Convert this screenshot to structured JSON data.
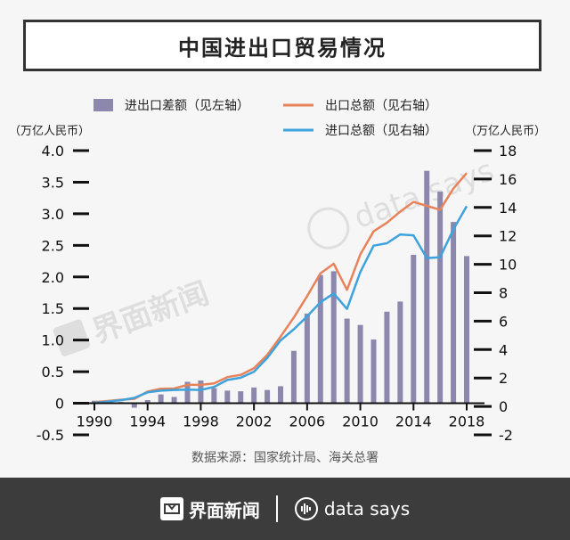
{
  "title": "中国进出口贸易情况",
  "source": "数据来源：国家统计局、海关总署",
  "footer": {
    "brand1": "界面新闻",
    "brand2": "data says"
  },
  "colors": {
    "bar": "#8c88ad",
    "export": "#e8825a",
    "import": "#3ea2dc",
    "axis": "#111111"
  },
  "chart_data": {
    "type": "bar+line",
    "legend": [
      {
        "name": "进出口差额（见左轴）",
        "type": "bar"
      },
      {
        "name": "出口总额（见右轴）",
        "type": "line"
      },
      {
        "name": "进口总额（见右轴）",
        "type": "line"
      }
    ],
    "y_left": {
      "unit": "（万亿人民币）",
      "min": -0.5,
      "max": 4.0,
      "ticks": [
        "-0.5",
        "0",
        "0.5",
        "1.0",
        "1.5",
        "2.0",
        "2.5",
        "3.0",
        "3.5",
        "4.0"
      ]
    },
    "y_right": {
      "unit": "（万亿人民币）",
      "min": -2,
      "max": 18,
      "ticks": [
        "-2",
        "0",
        "2",
        "4",
        "6",
        "8",
        "10",
        "12",
        "14",
        "16",
        "18"
      ]
    },
    "x_ticks": [
      "1990",
      "1994",
      "1998",
      "2002",
      "2006",
      "2010",
      "2014",
      "2018"
    ],
    "years": [
      1990,
      1991,
      1992,
      1993,
      1994,
      1995,
      1996,
      1997,
      1998,
      1999,
      2000,
      2001,
      2002,
      2003,
      2004,
      2005,
      2006,
      2007,
      2008,
      2009,
      2010,
      2011,
      2012,
      2013,
      2014,
      2015,
      2016,
      2017,
      2018
    ],
    "balance": [
      0.04,
      0.04,
      0.02,
      -0.07,
      0.05,
      0.14,
      0.1,
      0.34,
      0.36,
      0.24,
      0.2,
      0.19,
      0.25,
      0.21,
      0.27,
      0.83,
      1.42,
      2.03,
      2.09,
      1.34,
      1.24,
      1.01,
      1.45,
      1.61,
      2.35,
      3.68,
      3.35,
      2.87,
      2.33
    ],
    "export": [
      0.3,
      0.38,
      0.47,
      0.53,
      1.04,
      1.25,
      1.26,
      1.52,
      1.52,
      1.62,
      2.06,
      2.22,
      2.69,
      3.63,
      4.91,
      6.26,
      7.76,
      9.36,
      10.04,
      8.2,
      10.7,
      12.32,
      12.93,
      13.71,
      14.39,
      14.11,
      13.84,
      15.33,
      16.42
    ],
    "import": [
      0.26,
      0.34,
      0.44,
      0.6,
      0.99,
      1.11,
      1.16,
      1.18,
      1.16,
      1.37,
      1.86,
      2.02,
      2.44,
      3.42,
      4.64,
      5.43,
      6.34,
      7.33,
      7.95,
      6.86,
      9.46,
      11.31,
      11.48,
      12.1,
      12.04,
      10.44,
      10.49,
      12.46,
      14.09
    ]
  }
}
